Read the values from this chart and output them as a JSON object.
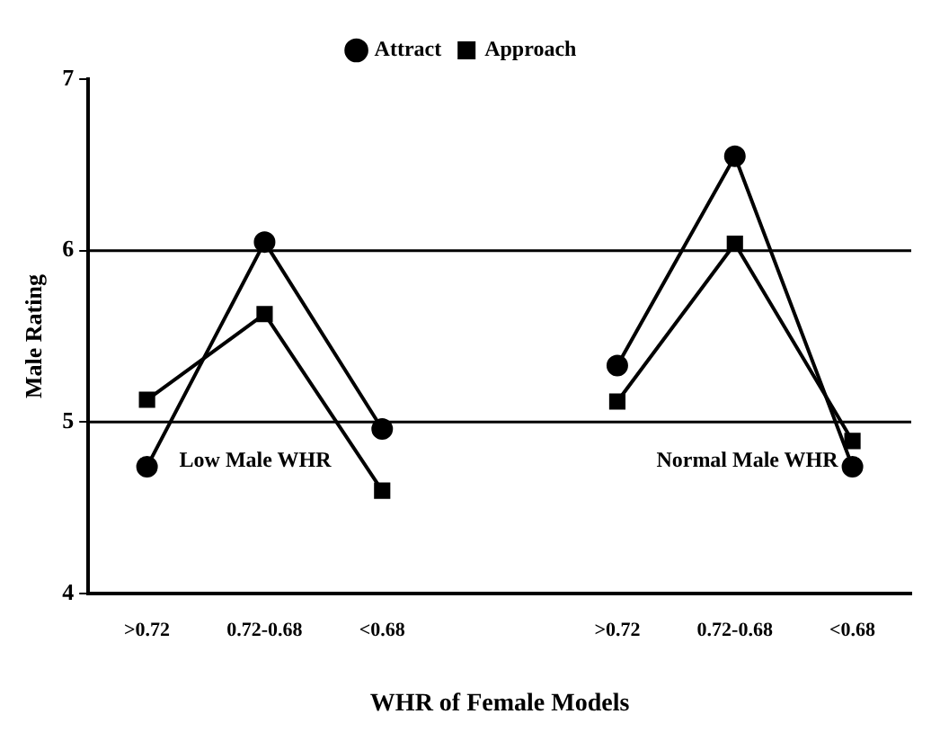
{
  "chart_data": {
    "type": "line",
    "xlabel": "WHR of Female Models",
    "ylabel": "Male Rating",
    "categories": [
      ">0.72",
      "0.72-0.68",
      "<0.68",
      null,
      ">0.72",
      "0.72-0.68",
      "<0.68"
    ],
    "series": [
      {
        "name": "Attract",
        "color": "#000000",
        "marker": "circle",
        "values": [
          4.74,
          6.05,
          4.96,
          null,
          5.33,
          6.55,
          4.74
        ]
      },
      {
        "name": "Approach",
        "color": "#000000",
        "marker": "square",
        "values": [
          5.13,
          5.63,
          4.6,
          null,
          5.12,
          6.04,
          4.89
        ]
      }
    ],
    "ylim": [
      4,
      7
    ],
    "yticks": [
      4,
      5,
      6,
      7
    ],
    "grid": false,
    "legend": "top",
    "ref_lines": [
      {
        "axis": "y",
        "value": 5
      },
      {
        "axis": "y",
        "value": 6
      }
    ],
    "annotations": [
      "Low Male WHR",
      "Normal Male WHR"
    ]
  }
}
